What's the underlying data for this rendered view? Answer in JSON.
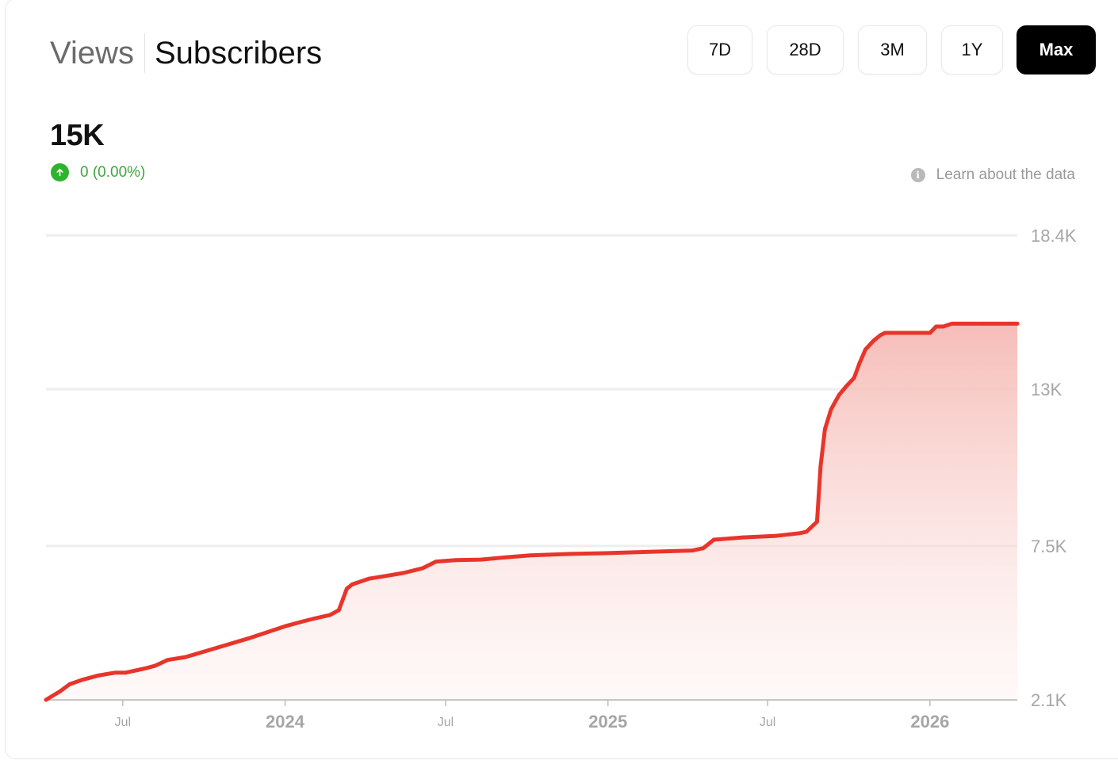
{
  "tabs": {
    "views": "Views",
    "subscribers": "Subscribers"
  },
  "ranges": [
    {
      "label": "7D",
      "selected": false
    },
    {
      "label": "28D",
      "selected": false
    },
    {
      "label": "3M",
      "selected": false
    },
    {
      "label": "1Y",
      "selected": false
    },
    {
      "label": "Max",
      "selected": true
    }
  ],
  "summary": {
    "value": "15K",
    "change": "0 (0.00%)",
    "change_icon": "arrow-up-icon",
    "change_color": "#3aa83a"
  },
  "learn_link": {
    "label": "Learn about the data",
    "icon": "info-icon"
  },
  "colors": {
    "line": "#e8352b",
    "fill": "#f6b9b4",
    "grid": "#eeeeee",
    "axis_text": "#a6a6a6"
  },
  "chart_data": {
    "type": "area",
    "title": "",
    "xlabel": "",
    "ylabel": "",
    "ylim": [
      2.1,
      18.4
    ],
    "y_ticks": [
      2.1,
      7.5,
      13,
      18.4
    ],
    "y_tick_labels": [
      "2.1K",
      "7.5K",
      "13K",
      "18.4K"
    ],
    "y_unit": "thousands",
    "x_ticks": [
      {
        "label": "Jul",
        "date": "2023-07-01",
        "major": false
      },
      {
        "label": "2024",
        "date": "2024-01-01",
        "major": true
      },
      {
        "label": "Jul",
        "date": "2024-07-01",
        "major": false
      },
      {
        "label": "2025",
        "date": "2025-01-01",
        "major": true
      },
      {
        "label": "Jul",
        "date": "2025-07-01",
        "major": false
      },
      {
        "label": "2026",
        "date": "2026-01-01",
        "major": true
      }
    ],
    "xlim": [
      "2023-04-05",
      "2026-04-10"
    ],
    "grid": true,
    "series": [
      {
        "x": [
          "2023-04-05",
          "2023-04-21",
          "2023-05-02",
          "2023-05-16",
          "2023-06-03",
          "2023-06-22",
          "2023-07-04",
          "2023-07-26",
          "2023-08-07",
          "2023-08-21",
          "2023-09-10",
          "2023-10-02",
          "2023-11-20",
          "2024-01-01",
          "2024-01-21",
          "2024-02-03",
          "2024-02-21",
          "2024-03-02",
          "2024-03-11",
          "2024-03-17",
          "2024-04-05",
          "2024-04-21",
          "2024-05-14",
          "2024-05-27",
          "2024-06-05",
          "2024-06-20",
          "2024-07-12",
          "2024-08-10",
          "2024-09-07",
          "2024-10-05",
          "2024-11-20",
          "2025-01-01",
          "2025-02-21",
          "2025-04-07",
          "2025-04-19",
          "2025-05-01",
          "2025-06-03",
          "2025-07-09",
          "2025-08-07",
          "2025-08-14",
          "2025-08-26",
          "2025-08-30",
          "2025-09-04",
          "2025-09-11",
          "2025-09-20",
          "2025-09-28",
          "2025-10-07",
          "2025-10-13",
          "2025-10-20",
          "2025-10-29",
          "2025-11-06",
          "2025-11-11",
          "2025-11-24",
          "2025-12-15",
          "2026-01-01",
          "2026-01-08",
          "2026-01-16",
          "2026-01-26",
          "2026-03-01",
          "2026-04-10"
        ],
        "values": [
          2.1,
          2.4,
          2.65,
          2.8,
          2.95,
          3.05,
          3.05,
          3.2,
          3.3,
          3.5,
          3.6,
          3.8,
          4.25,
          4.68,
          4.85,
          4.95,
          5.08,
          5.25,
          6.0,
          6.15,
          6.35,
          6.43,
          6.55,
          6.65,
          6.72,
          6.95,
          7.0,
          7.02,
          7.1,
          7.17,
          7.22,
          7.25,
          7.3,
          7.34,
          7.42,
          7.72,
          7.8,
          7.85,
          7.95,
          8.0,
          8.35,
          10.3,
          11.6,
          12.3,
          12.8,
          13.1,
          13.4,
          13.9,
          14.4,
          14.7,
          14.9,
          14.98,
          14.98,
          14.98,
          14.98,
          15.2,
          15.2,
          15.3,
          15.3,
          15.3
        ]
      }
    ]
  }
}
